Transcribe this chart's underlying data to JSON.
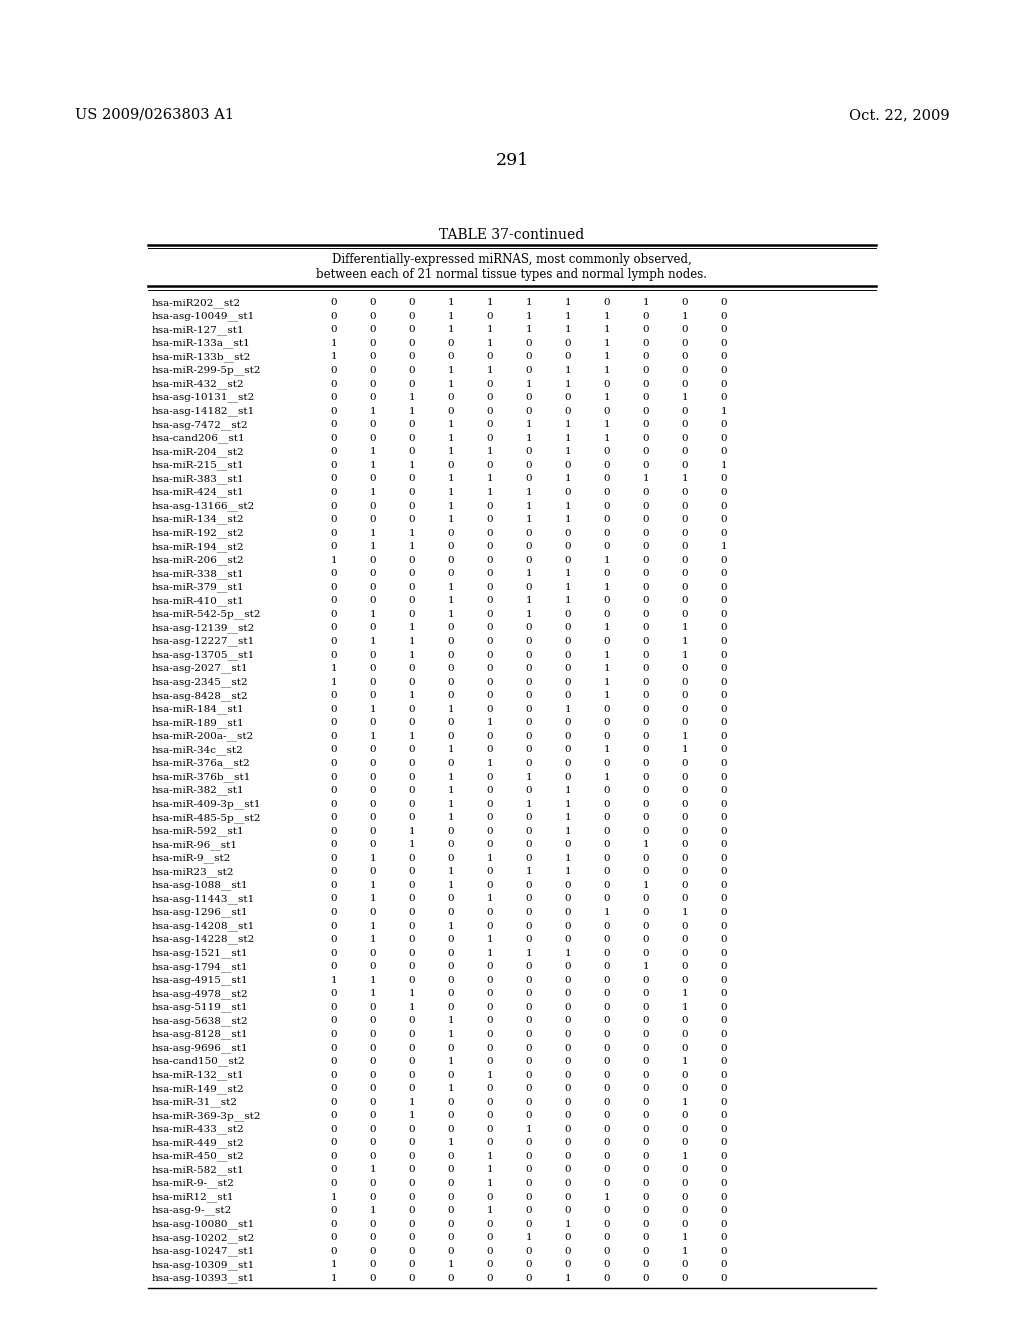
{
  "header_left": "US 2009/0263803 A1",
  "header_right": "Oct. 22, 2009",
  "page_number": "291",
  "table_title": "TABLE 37-continued",
  "table_subtitle_line1": "Differentially-expressed miRNAS, most commonly observed,",
  "table_subtitle_line2": "between each of 21 normal tissue types and normal lymph nodes.",
  "rows": [
    [
      "hsa-miR202__st2",
      0,
      0,
      0,
      1,
      1,
      1,
      1,
      0,
      1,
      0,
      0
    ],
    [
      "hsa-asg-10049__st1",
      0,
      0,
      0,
      1,
      0,
      1,
      1,
      1,
      0,
      1,
      0
    ],
    [
      "hsa-miR-127__st1",
      0,
      0,
      0,
      1,
      1,
      1,
      1,
      1,
      0,
      0,
      0
    ],
    [
      "hsa-miR-133a__st1",
      1,
      0,
      0,
      0,
      1,
      0,
      0,
      1,
      0,
      0,
      0
    ],
    [
      "hsa-miR-133b__st2",
      1,
      0,
      0,
      0,
      0,
      0,
      0,
      1,
      0,
      0,
      0
    ],
    [
      "hsa-miR-299-5p__st2",
      0,
      0,
      0,
      1,
      1,
      0,
      1,
      1,
      0,
      0,
      0
    ],
    [
      "hsa-miR-432__st2",
      0,
      0,
      0,
      1,
      0,
      1,
      1,
      0,
      0,
      0,
      0
    ],
    [
      "hsa-asg-10131__st2",
      0,
      0,
      1,
      0,
      0,
      0,
      0,
      1,
      0,
      1,
      0
    ],
    [
      "hsa-asg-14182__st1",
      0,
      1,
      1,
      0,
      0,
      0,
      0,
      0,
      0,
      0,
      1
    ],
    [
      "hsa-asg-7472__st2",
      0,
      0,
      0,
      1,
      0,
      1,
      1,
      1,
      0,
      0,
      0
    ],
    [
      "hsa-cand206__st1",
      0,
      0,
      0,
      1,
      0,
      1,
      1,
      1,
      0,
      0,
      0
    ],
    [
      "hsa-miR-204__st2",
      0,
      1,
      0,
      1,
      1,
      0,
      1,
      0,
      0,
      0,
      0
    ],
    [
      "hsa-miR-215__st1",
      0,
      1,
      1,
      0,
      0,
      0,
      0,
      0,
      0,
      0,
      1
    ],
    [
      "hsa-miR-383__st1",
      0,
      0,
      0,
      1,
      1,
      0,
      1,
      0,
      1,
      1,
      0
    ],
    [
      "hsa-miR-424__st1",
      0,
      1,
      0,
      1,
      1,
      1,
      0,
      0,
      0,
      0,
      0
    ],
    [
      "hsa-asg-13166__st2",
      0,
      0,
      0,
      1,
      0,
      1,
      1,
      0,
      0,
      0,
      0
    ],
    [
      "hsa-miR-134__st2",
      0,
      0,
      0,
      1,
      0,
      1,
      1,
      0,
      0,
      0,
      0
    ],
    [
      "hsa-miR-192__st2",
      0,
      1,
      1,
      0,
      0,
      0,
      0,
      0,
      0,
      0,
      0
    ],
    [
      "hsa-miR-194__st2",
      0,
      1,
      1,
      0,
      0,
      0,
      0,
      0,
      0,
      0,
      1
    ],
    [
      "hsa-miR-206__st2",
      1,
      0,
      0,
      0,
      0,
      0,
      0,
      1,
      0,
      0,
      0
    ],
    [
      "hsa-miR-338__st1",
      0,
      0,
      0,
      0,
      0,
      1,
      1,
      0,
      0,
      0,
      0
    ],
    [
      "hsa-miR-379__st1",
      0,
      0,
      0,
      1,
      0,
      0,
      1,
      1,
      0,
      0,
      0
    ],
    [
      "hsa-miR-410__st1",
      0,
      0,
      0,
      1,
      0,
      1,
      1,
      0,
      0,
      0,
      0
    ],
    [
      "hsa-miR-542-5p__st2",
      0,
      1,
      0,
      1,
      0,
      1,
      0,
      0,
      0,
      0,
      0
    ],
    [
      "hsa-asg-12139__st2",
      0,
      0,
      1,
      0,
      0,
      0,
      0,
      1,
      0,
      1,
      0
    ],
    [
      "hsa-asg-12227__st1",
      0,
      1,
      1,
      0,
      0,
      0,
      0,
      0,
      0,
      1,
      0
    ],
    [
      "hsa-asg-13705__st1",
      0,
      0,
      1,
      0,
      0,
      0,
      0,
      1,
      0,
      1,
      0
    ],
    [
      "hsa-asg-2027__st1",
      1,
      0,
      0,
      0,
      0,
      0,
      0,
      1,
      0,
      0,
      0
    ],
    [
      "hsa-asg-2345__st2",
      1,
      0,
      0,
      0,
      0,
      0,
      0,
      1,
      0,
      0,
      0
    ],
    [
      "hsa-asg-8428__st2",
      0,
      0,
      1,
      0,
      0,
      0,
      0,
      1,
      0,
      0,
      0
    ],
    [
      "hsa-miR-184__st1",
      0,
      1,
      0,
      1,
      0,
      0,
      1,
      0,
      0,
      0,
      0
    ],
    [
      "hsa-miR-189__st1",
      0,
      0,
      0,
      0,
      1,
      0,
      0,
      0,
      0,
      0,
      0
    ],
    [
      "hsa-miR-200a-__st2",
      0,
      1,
      1,
      0,
      0,
      0,
      0,
      0,
      0,
      1,
      0
    ],
    [
      "hsa-miR-34c__st2",
      0,
      0,
      0,
      1,
      0,
      0,
      0,
      1,
      0,
      1,
      0
    ],
    [
      "hsa-miR-376a__st2",
      0,
      0,
      0,
      0,
      1,
      0,
      0,
      0,
      0,
      0,
      0
    ],
    [
      "hsa-miR-376b__st1",
      0,
      0,
      0,
      1,
      0,
      1,
      0,
      1,
      0,
      0,
      0
    ],
    [
      "hsa-miR-382__st1",
      0,
      0,
      0,
      1,
      0,
      0,
      1,
      0,
      0,
      0,
      0
    ],
    [
      "hsa-miR-409-3p__st1",
      0,
      0,
      0,
      1,
      0,
      1,
      1,
      0,
      0,
      0,
      0
    ],
    [
      "hsa-miR-485-5p__st2",
      0,
      0,
      0,
      1,
      0,
      0,
      1,
      0,
      0,
      0,
      0
    ],
    [
      "hsa-miR-592__st1",
      0,
      0,
      1,
      0,
      0,
      0,
      1,
      0,
      0,
      0,
      0
    ],
    [
      "hsa-miR-96__st1",
      0,
      0,
      1,
      0,
      0,
      0,
      0,
      0,
      1,
      0,
      0
    ],
    [
      "hsa-miR-9__st2",
      0,
      1,
      0,
      0,
      1,
      0,
      1,
      0,
      0,
      0,
      0
    ],
    [
      "hsa-miR23__st2",
      0,
      0,
      0,
      1,
      0,
      1,
      1,
      0,
      0,
      0,
      0
    ],
    [
      "hsa-asg-1088__st1",
      0,
      1,
      0,
      1,
      0,
      0,
      0,
      0,
      1,
      0,
      0
    ],
    [
      "hsa-asg-11443__st1",
      0,
      1,
      0,
      0,
      1,
      0,
      0,
      0,
      0,
      0,
      0
    ],
    [
      "hsa-asg-1296__st1",
      0,
      0,
      0,
      0,
      0,
      0,
      0,
      1,
      0,
      1,
      0
    ],
    [
      "hsa-asg-14208__st1",
      0,
      1,
      0,
      1,
      0,
      0,
      0,
      0,
      0,
      0,
      0
    ],
    [
      "hsa-asg-14228__st2",
      0,
      1,
      0,
      0,
      1,
      0,
      0,
      0,
      0,
      0,
      0
    ],
    [
      "hsa-asg-1521__st1",
      0,
      0,
      0,
      0,
      1,
      1,
      1,
      0,
      0,
      0,
      0
    ],
    [
      "hsa-asg-1794__st1",
      0,
      0,
      0,
      0,
      0,
      0,
      0,
      0,
      1,
      0,
      0
    ],
    [
      "hsa-asg-4915__st1",
      1,
      1,
      0,
      0,
      0,
      0,
      0,
      0,
      0,
      0,
      0
    ],
    [
      "hsa-asg-4978__st2",
      0,
      1,
      1,
      0,
      0,
      0,
      0,
      0,
      0,
      1,
      0
    ],
    [
      "hsa-asg-5119__st1",
      0,
      0,
      1,
      0,
      0,
      0,
      0,
      0,
      0,
      1,
      0
    ],
    [
      "hsa-asg-5638__st2",
      0,
      0,
      0,
      1,
      0,
      0,
      0,
      0,
      0,
      0,
      0
    ],
    [
      "hsa-asg-8128__st1",
      0,
      0,
      0,
      1,
      0,
      0,
      0,
      0,
      0,
      0,
      0
    ],
    [
      "hsa-asg-9696__st1",
      0,
      0,
      0,
      0,
      0,
      0,
      0,
      0,
      0,
      0,
      0
    ],
    [
      "hsa-cand150__st2",
      0,
      0,
      0,
      1,
      0,
      0,
      0,
      0,
      0,
      1,
      0
    ],
    [
      "hsa-miR-132__st1",
      0,
      0,
      0,
      0,
      1,
      0,
      0,
      0,
      0,
      0,
      0
    ],
    [
      "hsa-miR-149__st2",
      0,
      0,
      0,
      1,
      0,
      0,
      0,
      0,
      0,
      0,
      0
    ],
    [
      "hsa-miR-31__st2",
      0,
      0,
      1,
      0,
      0,
      0,
      0,
      0,
      0,
      1,
      0
    ],
    [
      "hsa-miR-369-3p__st2",
      0,
      0,
      1,
      0,
      0,
      0,
      0,
      0,
      0,
      0,
      0
    ],
    [
      "hsa-miR-433__st2",
      0,
      0,
      0,
      0,
      0,
      1,
      0,
      0,
      0,
      0,
      0
    ],
    [
      "hsa-miR-449__st2",
      0,
      0,
      0,
      1,
      0,
      0,
      0,
      0,
      0,
      0,
      0
    ],
    [
      "hsa-miR-450__st2",
      0,
      0,
      0,
      0,
      1,
      0,
      0,
      0,
      0,
      1,
      0
    ],
    [
      "hsa-miR-582__st1",
      0,
      1,
      0,
      0,
      1,
      0,
      0,
      0,
      0,
      0,
      0
    ],
    [
      "hsa-miR-9-__st2",
      0,
      0,
      0,
      0,
      1,
      0,
      0,
      0,
      0,
      0,
      0
    ],
    [
      "hsa-miR12__st1",
      1,
      0,
      0,
      0,
      0,
      0,
      0,
      1,
      0,
      0,
      0
    ],
    [
      "hsa-asg-9-__st2",
      0,
      1,
      0,
      0,
      1,
      0,
      0,
      0,
      0,
      0,
      0
    ],
    [
      "hsa-asg-10080__st1",
      0,
      0,
      0,
      0,
      0,
      0,
      1,
      0,
      0,
      0,
      0
    ],
    [
      "hsa-asg-10202__st2",
      0,
      0,
      0,
      0,
      0,
      1,
      0,
      0,
      0,
      1,
      0
    ],
    [
      "hsa-asg-10247__st1",
      0,
      0,
      0,
      0,
      0,
      0,
      0,
      0,
      0,
      1,
      0
    ],
    [
      "hsa-asg-10309__st1",
      1,
      0,
      0,
      1,
      0,
      0,
      0,
      0,
      0,
      0,
      0
    ],
    [
      "hsa-asg-10393__st1",
      1,
      0,
      0,
      0,
      0,
      0,
      1,
      0,
      0,
      0,
      0
    ]
  ]
}
